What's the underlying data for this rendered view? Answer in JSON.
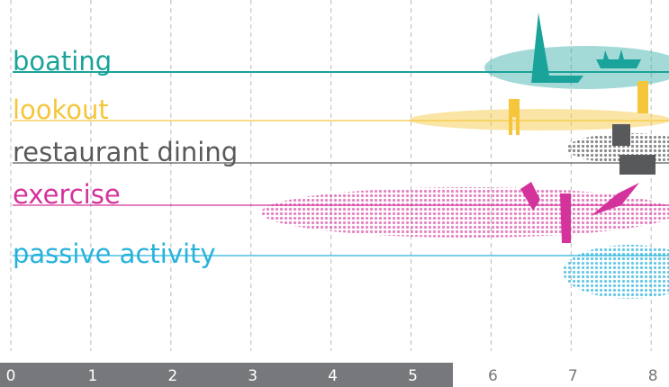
{
  "rows": [
    {
      "label": "boating",
      "color": "#1aa39a"
    },
    {
      "label": "lookout",
      "color": "#f5c63c"
    },
    {
      "label": "restaurant dining",
      "color": "#58595b"
    },
    {
      "label": "exercise",
      "color": "#d3339b"
    },
    {
      "label": "passive activity",
      "color": "#27b2dc"
    }
  ],
  "axis": {
    "ticks": [
      "0",
      "1",
      "2",
      "3",
      "4",
      "5",
      "6",
      "7",
      "8"
    ]
  }
}
